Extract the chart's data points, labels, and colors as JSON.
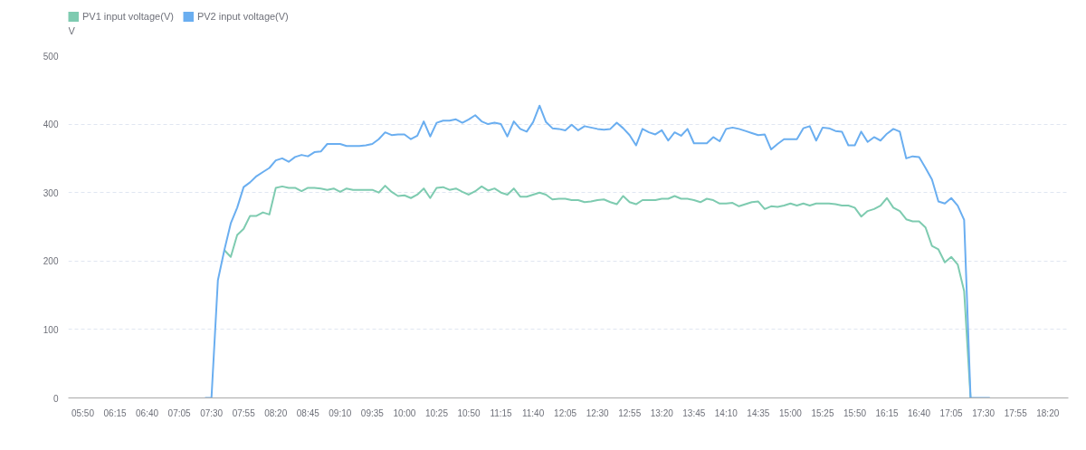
{
  "chart_data": {
    "type": "line",
    "ylabel": "V",
    "categories": [
      "05:50",
      null,
      null,
      null,
      null,
      "06:15",
      null,
      null,
      null,
      null,
      "06:40",
      null,
      null,
      null,
      null,
      "07:05",
      null,
      null,
      null,
      null,
      "07:30",
      null,
      null,
      null,
      null,
      "07:55",
      null,
      null,
      null,
      null,
      "08:20",
      null,
      null,
      null,
      null,
      "08:45",
      null,
      null,
      null,
      null,
      "09:10",
      null,
      null,
      null,
      null,
      "09:35",
      null,
      null,
      null,
      null,
      "10:00",
      null,
      null,
      null,
      null,
      "10:25",
      null,
      null,
      null,
      null,
      "10:50",
      null,
      null,
      null,
      null,
      "11:15",
      null,
      null,
      null,
      null,
      "11:40",
      null,
      null,
      null,
      null,
      "12:05",
      null,
      null,
      null,
      null,
      "12:30",
      null,
      null,
      null,
      null,
      "12:55",
      null,
      null,
      null,
      null,
      "13:20",
      null,
      null,
      null,
      null,
      "13:45",
      null,
      null,
      null,
      null,
      "14:10",
      null,
      null,
      null,
      null,
      "14:35",
      null,
      null,
      null,
      null,
      "15:00",
      null,
      null,
      null,
      null,
      "15:25",
      null,
      null,
      null,
      null,
      "15:50",
      null,
      null,
      null,
      null,
      "16:15",
      null,
      null,
      null,
      null,
      "16:40",
      null,
      null,
      null,
      null,
      "17:05",
      null,
      null,
      null,
      null,
      "17:30",
      null,
      null,
      null,
      null,
      "17:55",
      null,
      null,
      null,
      null,
      "18:20"
    ],
    "series": [
      {
        "name": "PV1 input voltage(V)",
        "color": "#7ecbb0",
        "values": [
          null,
          null,
          null,
          null,
          null,
          null,
          null,
          null,
          null,
          null,
          null,
          null,
          null,
          null,
          null,
          null,
          null,
          null,
          null,
          null,
          null,
          null,
          216,
          206,
          238,
          247,
          266,
          266,
          271,
          268,
          307,
          309,
          307,
          307,
          302,
          307,
          307,
          306,
          304,
          306,
          301,
          306,
          304,
          304,
          304,
          304,
          300,
          310,
          301,
          295,
          296,
          292,
          297,
          306,
          292,
          307,
          308,
          304,
          306,
          301,
          297,
          302,
          309,
          303,
          306,
          300,
          297,
          306,
          294,
          294,
          297,
          300,
          297,
          290,
          291,
          291,
          289,
          289,
          286,
          287,
          289,
          290,
          286,
          283,
          295,
          286,
          283,
          289,
          289,
          289,
          291,
          291,
          295,
          291,
          291,
          289,
          286,
          291,
          289,
          284,
          284,
          285,
          280,
          283,
          286,
          287,
          276,
          280,
          279,
          281,
          284,
          281,
          284,
          281,
          284,
          284,
          284,
          283,
          281,
          281,
          278,
          265,
          273,
          276,
          281,
          292,
          278,
          273,
          261,
          258,
          258,
          249,
          222,
          217,
          198,
          206,
          195,
          156,
          0,
          null,
          null,
          null,
          null,
          null,
          null,
          null,
          null,
          null,
          null,
          null,
          null
        ]
      },
      {
        "name": "PV2 input voltage(V)",
        "color": "#6aaef0",
        "values": [
          null,
          null,
          null,
          null,
          null,
          null,
          null,
          null,
          null,
          null,
          null,
          null,
          null,
          null,
          null,
          null,
          null,
          null,
          null,
          0,
          0,
          172,
          216,
          255,
          278,
          308,
          315,
          324,
          330,
          336,
          347,
          350,
          345,
          352,
          355,
          353,
          359,
          360,
          371,
          371,
          371,
          368,
          368,
          368,
          369,
          371,
          378,
          388,
          384,
          385,
          385,
          378,
          383,
          404,
          382,
          402,
          405,
          405,
          407,
          402,
          407,
          413,
          404,
          400,
          402,
          400,
          382,
          404,
          393,
          389,
          403,
          427,
          403,
          394,
          393,
          391,
          399,
          391,
          397,
          395,
          393,
          392,
          393,
          402,
          394,
          384,
          369,
          393,
          388,
          385,
          391,
          376,
          388,
          383,
          393,
          372,
          372,
          372,
          381,
          375,
          393,
          395,
          393,
          390,
          387,
          384,
          385,
          363,
          371,
          378,
          378,
          378,
          394,
          397,
          376,
          395,
          394,
          390,
          389,
          369,
          369,
          389,
          374,
          381,
          376,
          386,
          393,
          389,
          350,
          353,
          352,
          336,
          319,
          287,
          284,
          292,
          281,
          260,
          0,
          0,
          0,
          0,
          null,
          null,
          null,
          null,
          null,
          null,
          null,
          null,
          null
        ]
      }
    ],
    "ylim": [
      0,
      500
    ],
    "yticks": [
      0,
      100,
      200,
      300,
      400,
      500
    ],
    "grid": "y",
    "legend": "top left",
    "marker": "none",
    "line_style": "solid"
  }
}
